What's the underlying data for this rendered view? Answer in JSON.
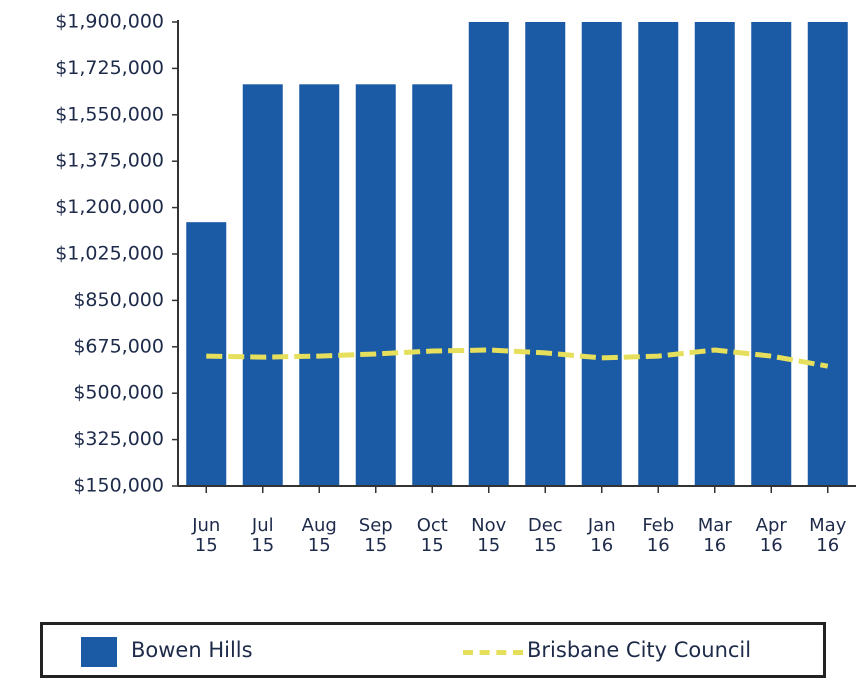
{
  "chart_data": {
    "type": "bar",
    "categories": [
      "Jun 15",
      "Jul 15",
      "Aug 15",
      "Sep 15",
      "Oct 15",
      "Nov 15",
      "Dec 15",
      "Jan 16",
      "Feb 16",
      "Mar 16",
      "Apr 16",
      "May 16"
    ],
    "series": [
      {
        "name": "Bowen Hills",
        "type": "bar",
        "color": "#1b5aa5",
        "values": [
          1145000,
          1665000,
          1665000,
          1665000,
          1665000,
          1900000,
          1900000,
          1900000,
          1900000,
          1900000,
          1900000,
          1900000
        ]
      },
      {
        "name": "Brisbane City Council",
        "type": "line",
        "color": "#e6df5c",
        "values": [
          640000,
          636000,
          640000,
          648000,
          659000,
          663000,
          652000,
          633000,
          640000,
          663000,
          640000,
          602000
        ]
      }
    ],
    "ylim": [
      150000,
      1900000
    ],
    "yticks": [
      {
        "value": 150000,
        "label": "$150,000"
      },
      {
        "value": 325000,
        "label": "$325,000"
      },
      {
        "value": 500000,
        "label": "$500,000"
      },
      {
        "value": 675000,
        "label": "$675,000"
      },
      {
        "value": 850000,
        "label": "$850,000"
      },
      {
        "value": 1025000,
        "label": "$1,025,000"
      },
      {
        "value": 1200000,
        "label": "$1,200,000"
      },
      {
        "value": 1375000,
        "label": "$1,375,000"
      },
      {
        "value": 1550000,
        "label": "$1,550,000"
      },
      {
        "value": 1725000,
        "label": "$1,725,000"
      },
      {
        "value": 1900000,
        "label": "$1,900,000"
      }
    ],
    "grid": false,
    "legend": "bottom"
  }
}
